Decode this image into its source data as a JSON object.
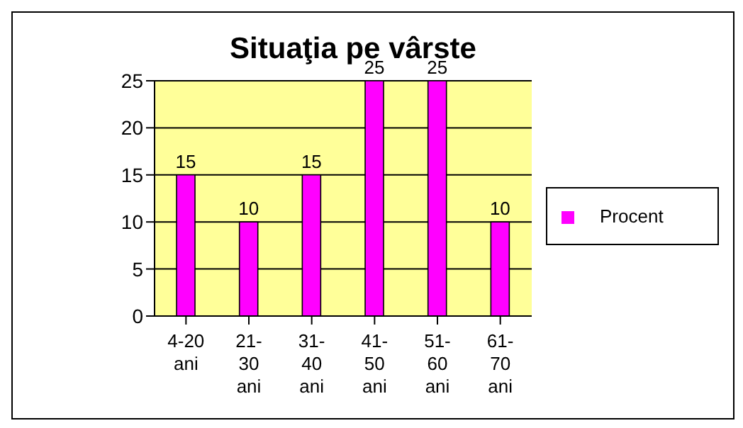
{
  "chart_data": {
    "type": "bar",
    "title": "Situaţia pe vârste",
    "categories": [
      "4-20 ani",
      "21-30 ani",
      "31-40 ani",
      "41-50 ani",
      "51-60 ani",
      "61-70 ani"
    ],
    "series": [
      {
        "name": "Procent",
        "color": "#ff00ff",
        "values": [
          15,
          10,
          15,
          25,
          25,
          10
        ]
      }
    ],
    "ylim": [
      0,
      25
    ],
    "yticks": [
      0,
      5,
      10,
      15,
      20,
      25
    ],
    "grid": "y",
    "legend": "right",
    "data_labels": true
  }
}
